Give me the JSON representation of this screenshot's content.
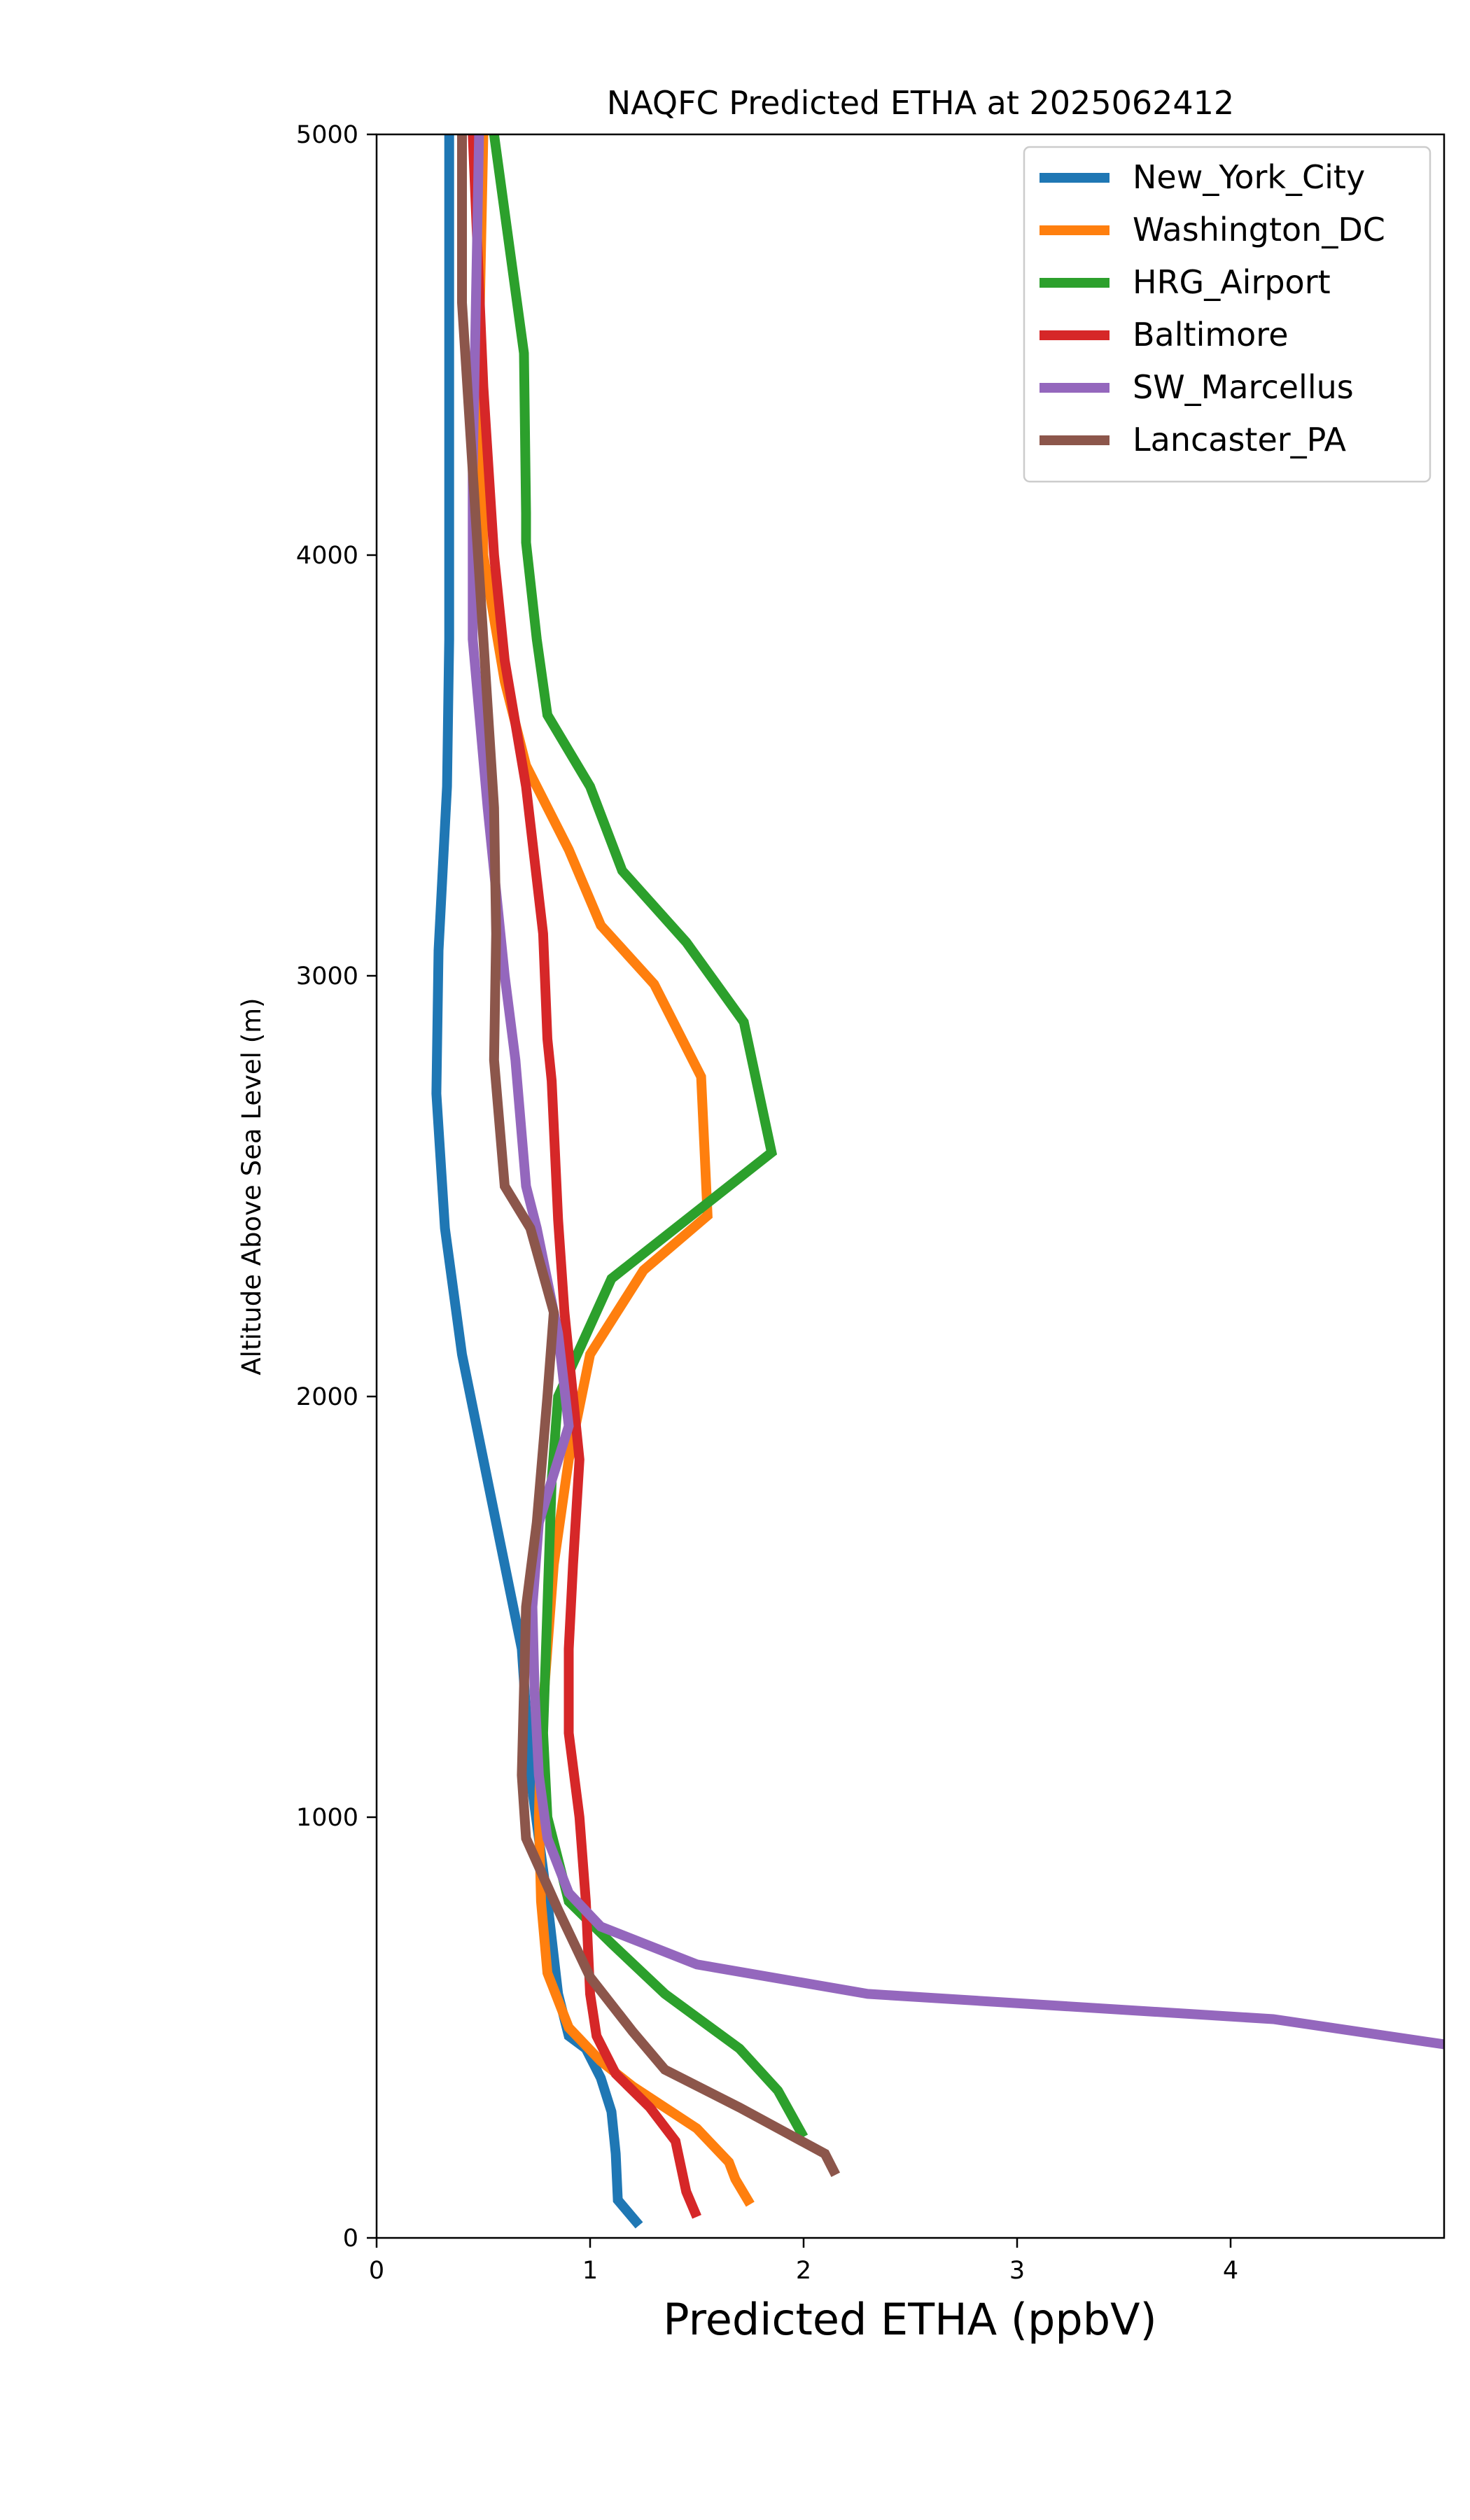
{
  "chart_data": {
    "type": "line",
    "title": "NAQFC Predicted ETHA at 2025062412",
    "xlabel": "Predicted ETHA (ppbV)",
    "ylabel": "Altitude Above Sea Level (m)",
    "xlim": [
      0,
      5
    ],
    "ylim": [
      0,
      5000
    ],
    "xticks": [
      0,
      1,
      2,
      3,
      4
    ],
    "yticks": [
      0,
      1000,
      2000,
      3000,
      4000,
      5000
    ],
    "grid": false,
    "legend_position": "top-right",
    "series": [
      {
        "name": "New_York_City",
        "color": "#1f77b4",
        "points": [
          [
            1.23,
            30
          ],
          [
            1.13,
            90
          ],
          [
            1.12,
            200
          ],
          [
            1.1,
            300
          ],
          [
            1.05,
            380
          ],
          [
            0.98,
            450
          ],
          [
            0.9,
            480
          ],
          [
            0.85,
            580
          ],
          [
            0.8,
            800
          ],
          [
            0.72,
            1100
          ],
          [
            0.68,
            1400
          ],
          [
            0.6,
            1600
          ],
          [
            0.5,
            1850
          ],
          [
            0.4,
            2100
          ],
          [
            0.32,
            2400
          ],
          [
            0.28,
            2720
          ],
          [
            0.29,
            3060
          ],
          [
            0.33,
            3450
          ],
          [
            0.34,
            3800
          ],
          [
            0.34,
            4200
          ],
          [
            0.34,
            5000
          ]
        ]
      },
      {
        "name": "Washington_DC",
        "color": "#ff7f0e",
        "points": [
          [
            1.75,
            80
          ],
          [
            1.68,
            140
          ],
          [
            1.65,
            180
          ],
          [
            1.5,
            260
          ],
          [
            1.2,
            360
          ],
          [
            1.05,
            420
          ],
          [
            0.9,
            500
          ],
          [
            0.8,
            630
          ],
          [
            0.77,
            800
          ],
          [
            0.76,
            1000
          ],
          [
            0.77,
            1200
          ],
          [
            0.8,
            1400
          ],
          [
            0.83,
            1600
          ],
          [
            0.9,
            1850
          ],
          [
            1.0,
            2100
          ],
          [
            1.25,
            2300
          ],
          [
            1.55,
            2430
          ],
          [
            1.52,
            2760
          ],
          [
            1.3,
            2980
          ],
          [
            1.05,
            3120
          ],
          [
            0.9,
            3300
          ],
          [
            0.7,
            3500
          ],
          [
            0.6,
            3700
          ],
          [
            0.5,
            4000
          ],
          [
            0.48,
            4500
          ],
          [
            0.5,
            5000
          ]
        ]
      },
      {
        "name": "HRG_Airport",
        "color": "#2ca02c",
        "points": [
          [
            2.0,
            240
          ],
          [
            1.88,
            350
          ],
          [
            1.7,
            450
          ],
          [
            1.35,
            580
          ],
          [
            1.1,
            700
          ],
          [
            0.9,
            800
          ],
          [
            0.8,
            1000
          ],
          [
            0.78,
            1200
          ],
          [
            0.8,
            1500
          ],
          [
            0.82,
            1800
          ],
          [
            0.85,
            2000
          ],
          [
            1.1,
            2280
          ],
          [
            1.85,
            2580
          ],
          [
            1.72,
            2890
          ],
          [
            1.45,
            3080
          ],
          [
            1.15,
            3250
          ],
          [
            1.0,
            3450
          ],
          [
            0.8,
            3620
          ],
          [
            0.75,
            3800
          ],
          [
            0.7,
            4030
          ],
          [
            0.7,
            4100
          ],
          [
            0.69,
            4480
          ],
          [
            0.55,
            5000
          ]
        ]
      },
      {
        "name": "Baltimore",
        "color": "#d62728",
        "points": [
          [
            1.5,
            50
          ],
          [
            1.45,
            110
          ],
          [
            1.4,
            230
          ],
          [
            1.28,
            310
          ],
          [
            1.12,
            390
          ],
          [
            1.03,
            480
          ],
          [
            1.0,
            580
          ],
          [
            0.98,
            800
          ],
          [
            0.95,
            1000
          ],
          [
            0.9,
            1200
          ],
          [
            0.9,
            1400
          ],
          [
            0.92,
            1600
          ],
          [
            0.95,
            1850
          ],
          [
            0.88,
            2200
          ],
          [
            0.85,
            2420
          ],
          [
            0.82,
            2750
          ],
          [
            0.8,
            2850
          ],
          [
            0.78,
            3100
          ],
          [
            0.7,
            3450
          ],
          [
            0.6,
            3750
          ],
          [
            0.55,
            4000
          ],
          [
            0.5,
            4400
          ],
          [
            0.45,
            5000
          ]
        ]
      },
      {
        "name": "SW_Marcellus",
        "color": "#9467bd",
        "points": [
          [
            5.0,
            460
          ],
          [
            4.2,
            520
          ],
          [
            2.3,
            580
          ],
          [
            1.5,
            650
          ],
          [
            1.05,
            740
          ],
          [
            0.9,
            820
          ],
          [
            0.8,
            950
          ],
          [
            0.76,
            1100
          ],
          [
            0.74,
            1300
          ],
          [
            0.73,
            1500
          ],
          [
            0.76,
            1700
          ],
          [
            0.82,
            1800
          ],
          [
            0.9,
            1930
          ],
          [
            0.85,
            2150
          ],
          [
            0.75,
            2400
          ],
          [
            0.7,
            2500
          ],
          [
            0.65,
            2800
          ],
          [
            0.6,
            3000
          ],
          [
            0.52,
            3400
          ],
          [
            0.45,
            3800
          ],
          [
            0.45,
            4200
          ],
          [
            0.48,
            5000
          ]
        ]
      },
      {
        "name": "Lancaster_PA",
        "color": "#8c564b",
        "points": [
          [
            2.15,
            150
          ],
          [
            2.1,
            200
          ],
          [
            1.7,
            310
          ],
          [
            1.35,
            400
          ],
          [
            1.2,
            490
          ],
          [
            1.0,
            620
          ],
          [
            0.85,
            780
          ],
          [
            0.7,
            950
          ],
          [
            0.68,
            1100
          ],
          [
            0.69,
            1300
          ],
          [
            0.7,
            1500
          ],
          [
            0.75,
            1700
          ],
          [
            0.8,
            2000
          ],
          [
            0.83,
            2200
          ],
          [
            0.72,
            2400
          ],
          [
            0.6,
            2500
          ],
          [
            0.55,
            2800
          ],
          [
            0.56,
            3100
          ],
          [
            0.55,
            3400
          ],
          [
            0.5,
            3800
          ],
          [
            0.45,
            4200
          ],
          [
            0.4,
            4600
          ],
          [
            0.4,
            5000
          ]
        ]
      }
    ]
  }
}
